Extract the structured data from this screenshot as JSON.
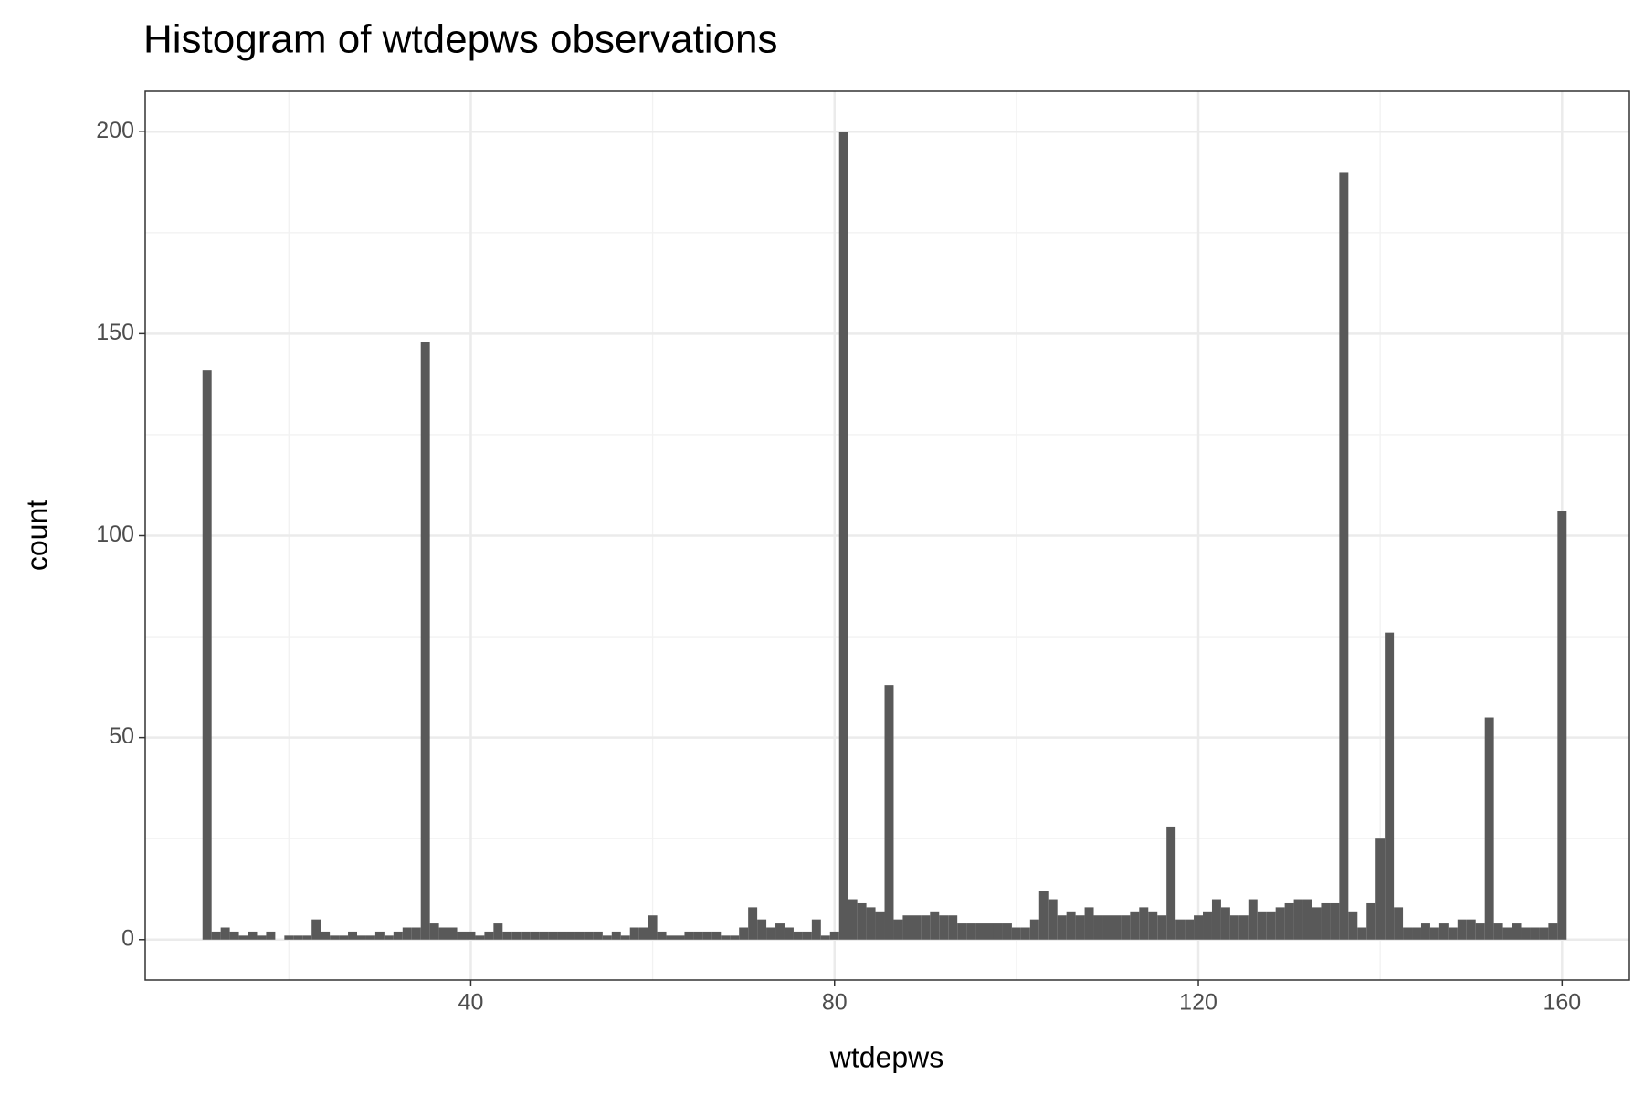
{
  "chart_data": {
    "type": "histogram",
    "title": "Histogram of wtdepws observations",
    "x_label": "wtdepws",
    "y_label": "count",
    "color": "#595959",
    "grid": true,
    "xlim": [
      4.2,
      167.4
    ],
    "ylim": [
      -10,
      210
    ],
    "xticks": [
      40,
      80,
      120,
      160
    ],
    "yticks": [
      0,
      50,
      100,
      150,
      200
    ],
    "xminor": [
      20,
      60,
      100,
      140
    ],
    "yminor": [
      25,
      75,
      125,
      175
    ],
    "bins": [
      10.5,
      11.5,
      12.5,
      13.5,
      14.5,
      15.5,
      16.5,
      17.5,
      18.5,
      19.5,
      20.5,
      21.5,
      22.5,
      23.5,
      24.5,
      25.5,
      26.5,
      27.5,
      28.5,
      29.5,
      30.5,
      31.5,
      32.5,
      33.5,
      34.5,
      35.5,
      36.5,
      37.5,
      38.5,
      39.5,
      40.5,
      41.5,
      42.5,
      43.5,
      44.5,
      45.5,
      46.5,
      47.5,
      48.5,
      49.5,
      50.5,
      51.5,
      52.5,
      53.5,
      54.5,
      55.5,
      56.5,
      57.5,
      58.5,
      59.5,
      60.5,
      61.5,
      62.5,
      63.5,
      64.5,
      65.5,
      66.5,
      67.5,
      68.5,
      69.5,
      70.5,
      71.5,
      72.5,
      73.5,
      74.5,
      75.5,
      76.5,
      77.5,
      78.5,
      79.5,
      80.5,
      81.5,
      82.5,
      83.5,
      84.5,
      85.5,
      86.5,
      87.5,
      88.5,
      89.5,
      90.5,
      91.5,
      92.5,
      93.5,
      94.5,
      95.5,
      96.5,
      97.5,
      98.5,
      99.5,
      100.5,
      101.5,
      102.5,
      103.5,
      104.5,
      105.5,
      106.5,
      107.5,
      108.5,
      109.5,
      110.5,
      111.5,
      112.5,
      113.5,
      114.5,
      115.5,
      116.5,
      117.5,
      118.5,
      119.5,
      120.5,
      121.5,
      122.5,
      123.5,
      124.5,
      125.5,
      126.5,
      127.5,
      128.5,
      129.5,
      130.5,
      131.5,
      132.5,
      133.5,
      134.5,
      135.5,
      136.5,
      137.5,
      138.5,
      139.5,
      140.5,
      141.5,
      142.5,
      143.5,
      144.5,
      145.5,
      146.5,
      147.5,
      148.5,
      149.5,
      150.5,
      151.5,
      152.5,
      153.5,
      154.5,
      155.5,
      156.5,
      157.5,
      158.5,
      159.5,
      160.5
    ],
    "values": [
      141,
      2,
      3,
      2,
      1,
      2,
      1,
      2,
      0,
      1,
      1,
      1,
      5,
      2,
      1,
      1,
      2,
      1,
      1,
      2,
      1,
      2,
      3,
      3,
      148,
      4,
      3,
      3,
      2,
      2,
      1,
      2,
      4,
      2,
      2,
      2,
      2,
      2,
      2,
      2,
      2,
      2,
      2,
      2,
      1,
      2,
      1,
      3,
      3,
      6,
      2,
      1,
      1,
      2,
      2,
      2,
      2,
      1,
      1,
      3,
      8,
      5,
      3,
      4,
      3,
      2,
      2,
      5,
      1,
      2,
      200,
      10,
      9,
      8,
      7,
      63,
      5,
      6,
      6,
      6,
      7,
      6,
      6,
      4,
      4,
      4,
      4,
      4,
      4,
      3,
      3,
      5,
      12,
      10,
      6,
      7,
      6,
      8,
      6,
      6,
      6,
      6,
      7,
      8,
      7,
      6,
      28,
      5,
      5,
      6,
      7,
      10,
      8,
      6,
      6,
      10,
      7,
      7,
      8,
      9,
      10,
      10,
      8,
      9,
      9,
      190,
      7,
      3,
      9,
      25,
      76,
      8,
      3,
      3,
      4,
      3,
      4,
      3,
      5,
      5,
      4,
      55,
      4,
      3,
      4,
      3,
      3,
      3,
      4,
      106
    ]
  }
}
